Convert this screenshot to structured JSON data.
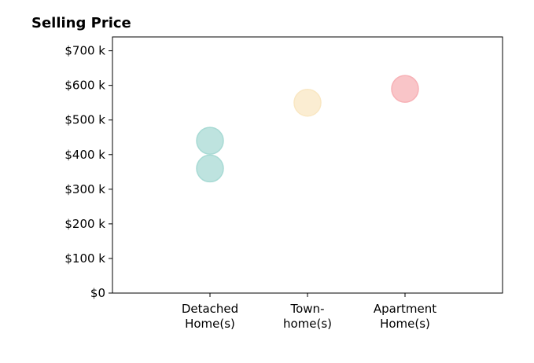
{
  "chart_data": {
    "type": "scatter",
    "title": "Selling Price",
    "xlabel": "",
    "ylabel": "",
    "categories": [
      "Detached Home(s)",
      "Town-home(s)",
      "Apartment Home(s)"
    ],
    "category_label_lines": [
      [
        "Detached",
        "Home(s)"
      ],
      [
        "Town-",
        "home(s)"
      ],
      [
        "Apartment",
        "Home(s)"
      ]
    ],
    "ylim": [
      0,
      740000
    ],
    "yticks": [
      0,
      100000,
      200000,
      300000,
      400000,
      500000,
      600000,
      700000
    ],
    "ytick_labels": [
      "$0",
      "$100 k",
      "$200 k",
      "$300 k",
      "$400 k",
      "$500 k",
      "$600 k",
      "$700 k"
    ],
    "grid": false,
    "points": [
      {
        "category": "Detached Home(s)",
        "value": 440000,
        "color": "#a8dad4"
      },
      {
        "category": "Detached Home(s)",
        "value": 360000,
        "color": "#a8dad4"
      },
      {
        "category": "Town-home(s)",
        "value": 550000,
        "color": "#f9e7c3"
      },
      {
        "category": "Apartment Home(s)",
        "value": 590000,
        "color": "#f7b1b6"
      }
    ]
  }
}
